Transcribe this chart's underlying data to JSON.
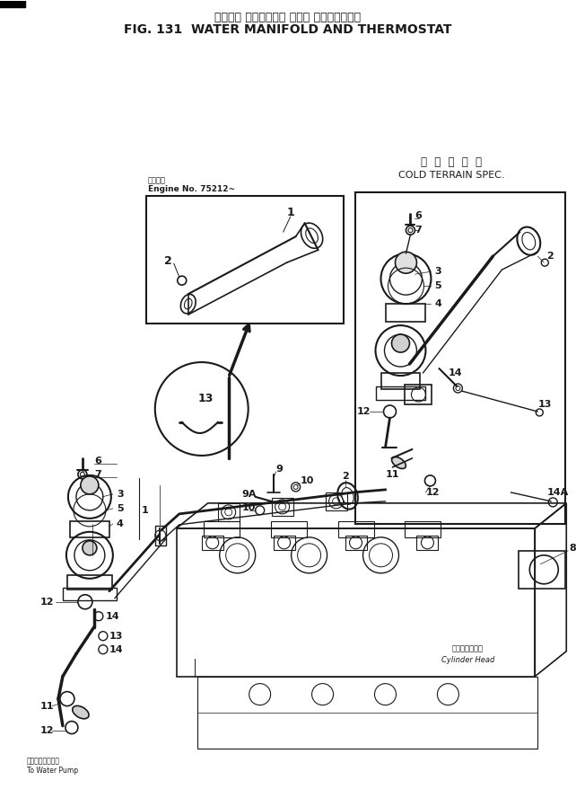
{
  "title_jp": "ウォータ マニホールド および サーモスタート",
  "title_en": "FIG. 131  WATER MANIFOLD AND THERMOSTAT",
  "cold_terrain_jp": "寒  冷  地  仕  様",
  "cold_terrain_en": "COLD TERRAIN SPEC.",
  "engine_no_jp": "機関番号",
  "engine_no_en": "Engine No. 75212~",
  "cylinder_head_jp": "シリンダヘッド",
  "cylinder_head_en": "Cylinder Head",
  "to_water_pump_jp": "ウォータポンプへ",
  "to_water_pump_en": "To Water Pump",
  "bg_color": "#ffffff",
  "line_color": "#1a1a1a",
  "fig_width": 6.42,
  "fig_height": 8.98
}
